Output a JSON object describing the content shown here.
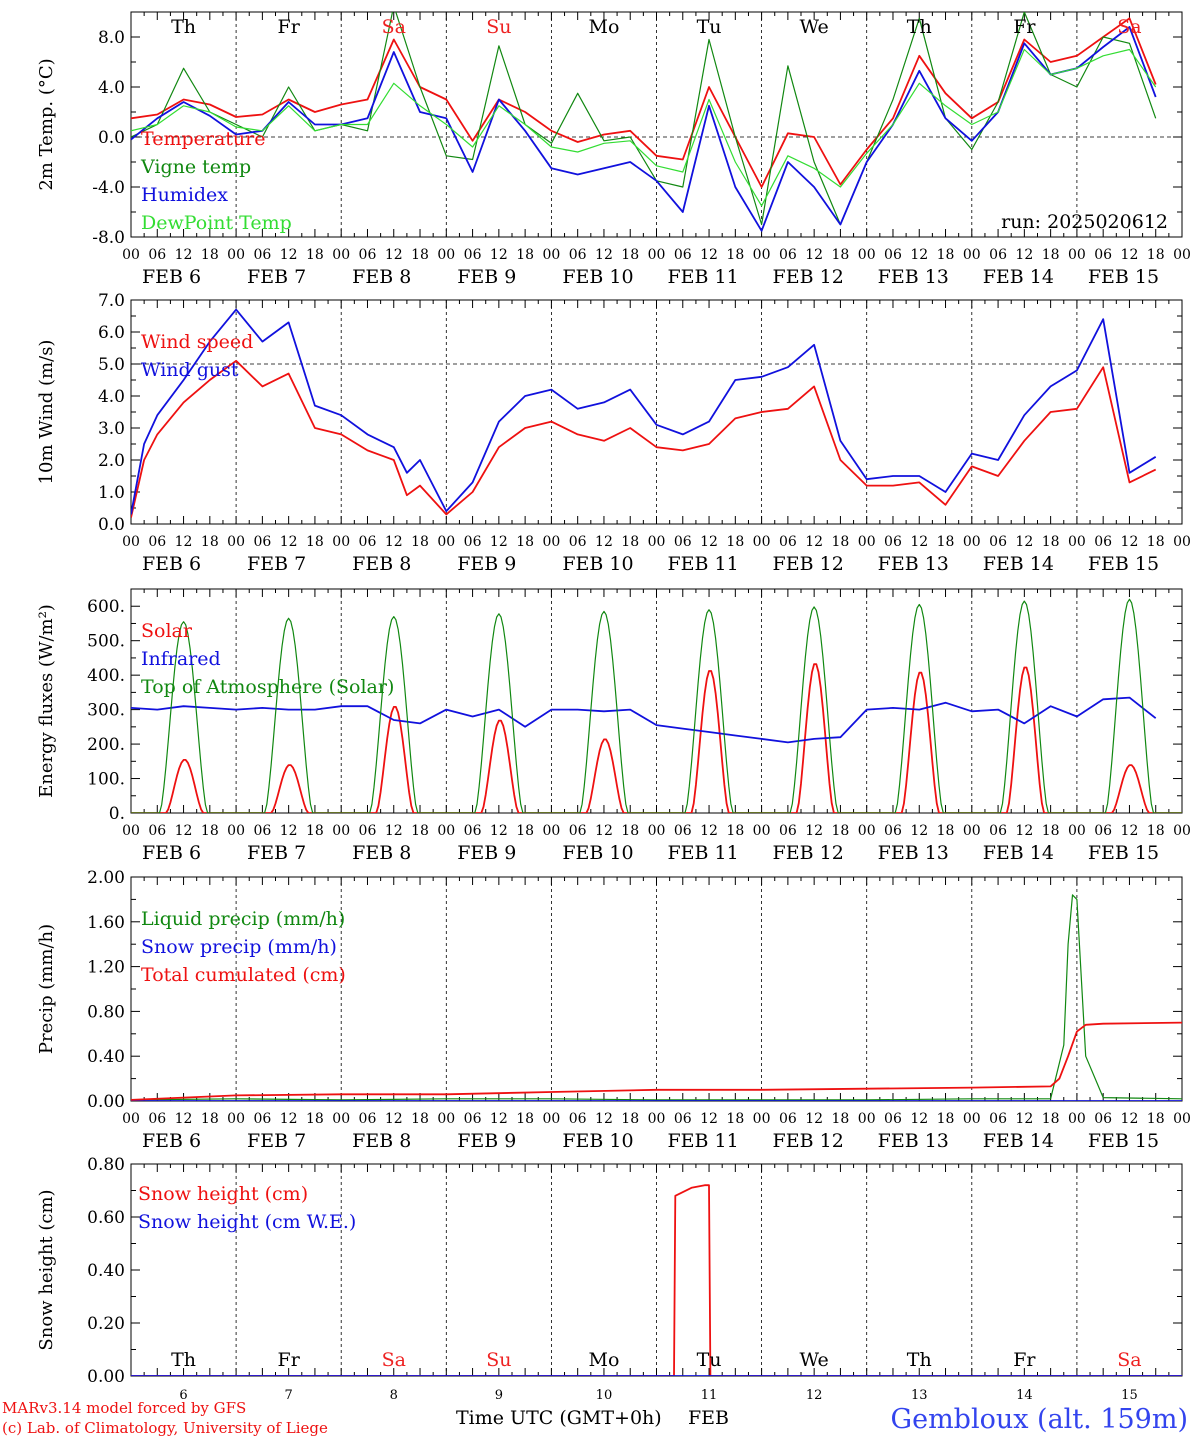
{
  "meetogram": {
    "run_label": "run: 2025020612",
    "footer": {
      "model": "MARv3.14 model forced by GFS",
      "credit": "(c) Lab. of Climatology, University of Liege",
      "xlabel": "Time UTC (GMT+0h)",
      "month": "FEB",
      "station": "Gembloux (alt. 159m)"
    },
    "days": [
      {
        "dow": "Th",
        "date": "FEB  6",
        "num": "6",
        "weekend": false
      },
      {
        "dow": "Fr",
        "date": "FEB  7",
        "num": "7",
        "weekend": false
      },
      {
        "dow": "Sa",
        "date": "FEB  8",
        "num": "8",
        "weekend": true
      },
      {
        "dow": "Su",
        "date": "FEB  9",
        "num": "9",
        "weekend": true
      },
      {
        "dow": "Mo",
        "date": "FEB 10",
        "num": "10",
        "weekend": false
      },
      {
        "dow": "Tu",
        "date": "FEB 11",
        "num": "11",
        "weekend": false
      },
      {
        "dow": "We",
        "date": "FEB 12",
        "num": "12",
        "weekend": false
      },
      {
        "dow": "Th",
        "date": "FEB 13",
        "num": "13",
        "weekend": false
      },
      {
        "dow": "Fr",
        "date": "FEB 14",
        "num": "14",
        "weekend": false
      },
      {
        "dow": "Sa",
        "date": "FEB 15",
        "num": "15",
        "weekend": true
      }
    ],
    "hour_labels": [
      "00",
      "06",
      "12",
      "18"
    ],
    "colors": {
      "red": "#ee1111",
      "green": "#118811",
      "blue": "#1111dd",
      "lightgreen": "#33dd33",
      "weekend": "#ee2222",
      "station": "#3344ee"
    }
  },
  "chart_data": [
    {
      "type": "line",
      "ylabel": "2m Temp. (°C)",
      "ylim": [
        -8,
        10
      ],
      "yticks": [
        "-8.0",
        "-4.0",
        "0.0",
        "4.0",
        "8.0"
      ],
      "ytick_values": [
        -8,
        -4,
        0,
        4,
        8
      ],
      "ref_line": 0,
      "x_unit": "hours since Feb 6 00 UTC",
      "series": [
        {
          "name": "Temperature",
          "color": "red",
          "x": [
            0,
            6,
            12,
            18,
            24,
            30,
            36,
            42,
            48,
            54,
            60,
            66,
            72,
            78,
            84,
            90,
            96,
            102,
            108,
            114,
            120,
            126,
            132,
            138,
            144,
            150,
            156,
            162,
            168,
            174,
            180,
            186,
            192,
            198,
            204,
            210,
            216,
            222,
            228,
            234
          ],
          "y": [
            1.5,
            1.8,
            3.0,
            2.6,
            1.6,
            1.8,
            3.0,
            2.0,
            2.6,
            3.0,
            7.8,
            4.0,
            3.0,
            -0.3,
            3.0,
            2.0,
            0.5,
            -0.4,
            0.2,
            0.5,
            -1.5,
            -1.8,
            4.0,
            0.0,
            -4.0,
            0.3,
            0.0,
            -3.8,
            -1.0,
            1.5,
            6.5,
            3.5,
            1.5,
            2.8,
            7.8,
            6.0,
            6.5,
            8.0,
            9.5,
            4.2
          ]
        },
        {
          "name": "Vigne temp",
          "color": "green",
          "x": [
            0,
            6,
            12,
            18,
            24,
            30,
            36,
            42,
            48,
            54,
            60,
            66,
            72,
            78,
            84,
            90,
            96,
            102,
            108,
            114,
            120,
            126,
            132,
            138,
            144,
            150,
            156,
            162,
            168,
            174,
            180,
            186,
            192,
            198,
            204,
            210,
            216,
            222,
            228,
            234
          ],
          "y": [
            0.0,
            1.0,
            5.5,
            2.0,
            1.0,
            0.0,
            4.0,
            0.5,
            1.0,
            0.5,
            10.5,
            4.0,
            -1.5,
            -1.8,
            7.3,
            1.0,
            -0.5,
            3.5,
            -0.3,
            0.0,
            -3.5,
            -4.0,
            7.8,
            0.0,
            -7.0,
            5.7,
            -2.0,
            -7.0,
            -2.0,
            3.0,
            9.5,
            1.5,
            -1.0,
            2.8,
            10.0,
            5.0,
            4.0,
            8.0,
            7.5,
            1.5
          ]
        },
        {
          "name": "Humidex",
          "color": "blue",
          "x": [
            0,
            6,
            12,
            18,
            24,
            30,
            36,
            42,
            48,
            54,
            60,
            66,
            72,
            78,
            84,
            90,
            96,
            102,
            108,
            114,
            120,
            126,
            132,
            138,
            144,
            150,
            156,
            162,
            168,
            174,
            180,
            186,
            192,
            198,
            204,
            210,
            216,
            222,
            228,
            234
          ],
          "y": [
            -0.2,
            1.5,
            2.8,
            1.7,
            0.2,
            0.5,
            2.8,
            1.0,
            1.0,
            1.5,
            6.8,
            2.0,
            1.5,
            -2.8,
            3.0,
            0.5,
            -2.5,
            -3.0,
            -2.5,
            -2.0,
            -3.5,
            -6.0,
            2.5,
            -4.0,
            -7.5,
            -2.0,
            -4.0,
            -7.0,
            -2.0,
            1.0,
            5.3,
            1.5,
            -0.3,
            2.0,
            7.5,
            5.0,
            5.5,
            7.2,
            8.8,
            3.2
          ]
        },
        {
          "name": "DewPoint Temp",
          "color": "lightgreen",
          "x": [
            0,
            6,
            12,
            18,
            24,
            30,
            36,
            42,
            48,
            54,
            60,
            66,
            72,
            78,
            84,
            90,
            96,
            102,
            108,
            114,
            120,
            126,
            132,
            138,
            144,
            150,
            156,
            162,
            168,
            174,
            180,
            186,
            192,
            198,
            204,
            210,
            216,
            222,
            228,
            234
          ],
          "y": [
            0.5,
            1.0,
            2.5,
            2.0,
            0.8,
            0.5,
            2.5,
            0.5,
            1.0,
            1.0,
            4.3,
            2.5,
            1.0,
            -0.8,
            2.5,
            1.0,
            -0.8,
            -1.2,
            -0.5,
            -0.3,
            -2.3,
            -2.8,
            3.0,
            -2.0,
            -5.5,
            -1.5,
            -2.5,
            -4.0,
            -1.3,
            1.0,
            4.3,
            2.5,
            1.0,
            2.0,
            7.0,
            5.0,
            5.5,
            6.5,
            7.0,
            4.0
          ]
        }
      ]
    },
    {
      "type": "line",
      "ylabel": "10m Wind (m/s)",
      "ylim": [
        0,
        7
      ],
      "yticks": [
        "0.0",
        "1.0",
        "2.0",
        "3.0",
        "4.0",
        "5.0",
        "6.0",
        "7.0"
      ],
      "ytick_values": [
        0,
        1,
        2,
        3,
        4,
        5,
        6,
        7
      ],
      "ref_line": 5,
      "x_unit": "hours since Feb 6 00 UTC",
      "series": [
        {
          "name": "Wind speed",
          "color": "red",
          "x": [
            0,
            3,
            6,
            12,
            18,
            24,
            30,
            36,
            42,
            48,
            54,
            60,
            63,
            66,
            72,
            78,
            84,
            90,
            96,
            102,
            108,
            114,
            120,
            126,
            132,
            138,
            144,
            150,
            156,
            162,
            168,
            174,
            180,
            186,
            192,
            198,
            204,
            210,
            216,
            222,
            228,
            234
          ],
          "y": [
            0.2,
            2.0,
            2.8,
            3.8,
            4.5,
            5.1,
            4.3,
            4.7,
            3.0,
            2.8,
            2.3,
            2.0,
            0.9,
            1.2,
            0.3,
            1.0,
            2.4,
            3.0,
            3.2,
            2.8,
            2.6,
            3.0,
            2.4,
            2.3,
            2.5,
            3.3,
            3.5,
            3.6,
            4.3,
            2.0,
            1.2,
            1.2,
            1.3,
            0.6,
            1.8,
            1.5,
            2.6,
            3.5,
            3.6,
            4.9,
            1.3,
            1.7
          ]
        },
        {
          "name": "Wind gust",
          "color": "blue",
          "x": [
            0,
            3,
            6,
            12,
            18,
            24,
            30,
            36,
            42,
            48,
            54,
            60,
            63,
            66,
            72,
            78,
            84,
            90,
            96,
            102,
            108,
            114,
            120,
            126,
            132,
            138,
            144,
            150,
            156,
            162,
            168,
            174,
            180,
            186,
            192,
            198,
            204,
            210,
            216,
            222,
            228,
            234
          ],
          "y": [
            0.3,
            2.5,
            3.4,
            4.5,
            5.7,
            6.7,
            5.7,
            6.3,
            3.7,
            3.4,
            2.8,
            2.4,
            1.6,
            2.0,
            0.4,
            1.3,
            3.2,
            4.0,
            4.2,
            3.6,
            3.8,
            4.2,
            3.1,
            2.8,
            3.2,
            4.5,
            4.6,
            4.9,
            5.6,
            2.6,
            1.4,
            1.5,
            1.5,
            1.0,
            2.2,
            2.0,
            3.4,
            4.3,
            4.8,
            6.4,
            1.6,
            2.1
          ]
        }
      ]
    },
    {
      "type": "line",
      "ylabel": "Energy fluxes (W/m²)",
      "ylim": [
        0,
        650
      ],
      "yticks": [
        "0.",
        "100.",
        "200.",
        "300.",
        "400.",
        "500.",
        "600."
      ],
      "ytick_values": [
        0,
        100,
        200,
        300,
        400,
        500,
        600
      ],
      "ref_line": null,
      "x_unit": "hours since Feb 6 00 UTC",
      "diurnal_peaks": {
        "solar_peak": [
          155,
          140,
          310,
          270,
          215,
          415,
          435,
          410,
          425,
          140
        ],
        "toa_peak": [
          555,
          565,
          570,
          578,
          585,
          590,
          598,
          605,
          615,
          620
        ]
      },
      "series": [
        {
          "name": "Solar",
          "color": "red"
        },
        {
          "name": "Infrared",
          "color": "blue",
          "x": [
            0,
            6,
            12,
            18,
            24,
            30,
            36,
            42,
            48,
            54,
            60,
            66,
            72,
            78,
            84,
            90,
            96,
            102,
            108,
            114,
            120,
            126,
            132,
            138,
            144,
            150,
            156,
            162,
            168,
            174,
            180,
            186,
            192,
            198,
            204,
            210,
            216,
            222,
            228,
            234
          ],
          "y": [
            305,
            300,
            310,
            305,
            300,
            305,
            300,
            300,
            310,
            310,
            270,
            260,
            300,
            280,
            300,
            250,
            300,
            300,
            295,
            300,
            255,
            245,
            235,
            225,
            215,
            205,
            215,
            220,
            300,
            305,
            300,
            320,
            295,
            300,
            260,
            310,
            280,
            330,
            335,
            275
          ]
        },
        {
          "name": "Top of Atmosphere (Solar)",
          "color": "green"
        }
      ]
    },
    {
      "type": "line",
      "ylabel": "Precip (mm/h)",
      "ylim": [
        0,
        2
      ],
      "yticks": [
        "0.00",
        "0.40",
        "0.80",
        "1.20",
        "1.60",
        "2.00"
      ],
      "ytick_values": [
        0,
        0.4,
        0.8,
        1.2,
        1.6,
        2.0
      ],
      "ref_line": null,
      "x_unit": "hours since Feb 6 00 UTC",
      "series": [
        {
          "name": "Liquid precip (mm/h)",
          "color": "green",
          "x": [
            0,
            24,
            48,
            72,
            96,
            120,
            144,
            168,
            192,
            210,
            213,
            214,
            215,
            216,
            218,
            222,
            240
          ],
          "y": [
            0.01,
            0.02,
            0.01,
            0.02,
            0.02,
            0.01,
            0.01,
            0.01,
            0.02,
            0.02,
            0.5,
            1.4,
            1.84,
            1.8,
            0.4,
            0.03,
            0.02
          ]
        },
        {
          "name": "Snow precip (mm/h)",
          "color": "blue",
          "x": [
            0,
            240
          ],
          "y": [
            0.0,
            0.0
          ]
        },
        {
          "name": "Total cumulated (cm)",
          "color": "red",
          "x": [
            0,
            24,
            48,
            72,
            96,
            120,
            144,
            168,
            192,
            210,
            212,
            214,
            216,
            218,
            222,
            240
          ],
          "y": [
            0.01,
            0.05,
            0.06,
            0.06,
            0.08,
            0.1,
            0.1,
            0.11,
            0.12,
            0.13,
            0.2,
            0.4,
            0.62,
            0.68,
            0.69,
            0.7
          ]
        }
      ]
    },
    {
      "type": "line",
      "ylabel": "Snow height (cm)",
      "ylim": [
        0,
        0.8
      ],
      "yticks": [
        "0.00",
        "0.20",
        "0.40",
        "0.60",
        "0.80"
      ],
      "ytick_values": [
        0,
        0.2,
        0.4,
        0.6,
        0.8
      ],
      "ref_line": null,
      "x_unit": "hours since Feb 6 00 UTC",
      "series": [
        {
          "name": "Snow height (cm)",
          "color": "red",
          "x": [
            0,
            124,
            124.3,
            128,
            131,
            132,
            132.3,
            240
          ],
          "y": [
            0,
            0,
            0.68,
            0.71,
            0.72,
            0.72,
            0,
            0
          ]
        },
        {
          "name": "Snow height (cm W.E.)",
          "color": "blue",
          "x": [
            0,
            240
          ],
          "y": [
            0,
            0
          ]
        }
      ]
    }
  ]
}
